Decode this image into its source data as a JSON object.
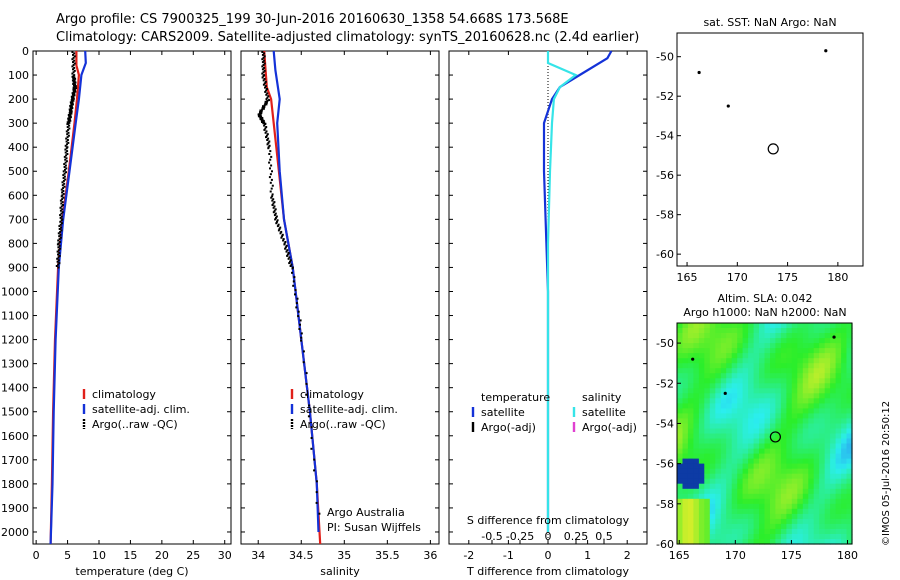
{
  "header": {
    "line1": "Argo profile: CS 7900325_199 30-Jun-2016 20160630_1358 54.668S 173.568E",
    "line2": "Climatology: CARS2009. Satellite-adjusted climatology: synTS_20160628.nc (2.4d earlier)"
  },
  "colors": {
    "clim": "#e0201a",
    "sat": "#1432d8",
    "argo": "#000000",
    "sal_sat": "#36e4e8",
    "sal_argo": "#e040d0"
  },
  "chart_data": [
    {
      "id": "temperature",
      "type": "line",
      "xlabel": "temperature (deg C)",
      "ylabel": "",
      "xlim": [
        -0.5,
        31
      ],
      "ylim": [
        2050,
        0
      ],
      "xticks": [
        0,
        5,
        10,
        15,
        20,
        25,
        30
      ],
      "xtick_labels": [
        "0",
        "5",
        "10",
        "15",
        "20",
        "25",
        "30"
      ],
      "yticks": [
        0,
        100,
        200,
        300,
        400,
        500,
        600,
        700,
        800,
        900,
        1000,
        1100,
        1200,
        1300,
        1400,
        1500,
        1600,
        1700,
        1800,
        1900,
        2000
      ],
      "ytick_labels": [
        "0",
        "100",
        "200",
        "300",
        "400",
        "500",
        "600",
        "700",
        "800",
        "900",
        "1000",
        "1100",
        "1200",
        "1300",
        "1400",
        "1500",
        "1600",
        "1700",
        "1800",
        "1900",
        "2000"
      ],
      "legend": [
        "climatology",
        "satellite-adj. clim.",
        "Argo(..raw -QC)"
      ],
      "series": [
        {
          "name": "climatology",
          "color_key": "clim",
          "style": "line",
          "points": [
            [
              6.4,
              0
            ],
            [
              6.4,
              60
            ],
            [
              6.8,
              100
            ],
            [
              6.5,
              200
            ],
            [
              6.1,
              300
            ],
            [
              5.2,
              500
            ],
            [
              4.2,
              700
            ],
            [
              3.5,
              900
            ],
            [
              3.0,
              1200
            ],
            [
              2.7,
              1500
            ],
            [
              2.5,
              1800
            ],
            [
              2.3,
              2050
            ]
          ]
        },
        {
          "name": "satellite-adj. clim.",
          "color_key": "sat",
          "style": "line",
          "points": [
            [
              7.8,
              0
            ],
            [
              7.9,
              50
            ],
            [
              7.2,
              100
            ],
            [
              6.8,
              200
            ],
            [
              6.3,
              300
            ],
            [
              5.3,
              500
            ],
            [
              4.3,
              700
            ],
            [
              3.6,
              900
            ],
            [
              3.1,
              1200
            ],
            [
              2.8,
              1500
            ],
            [
              2.6,
              1800
            ],
            [
              2.3,
              2050
            ]
          ]
        },
        {
          "name": "Argo(..raw -QC)",
          "color_key": "argo",
          "style": "dots",
          "points": [
            [
              5.8,
              0
            ],
            [
              5.8,
              100
            ],
            [
              6.0,
              150
            ],
            [
              5.6,
              200
            ],
            [
              5.3,
              250
            ],
            [
              5.0,
              300
            ],
            [
              4.7,
              400
            ],
            [
              4.4,
              500
            ],
            [
              4.0,
              600
            ],
            [
              3.8,
              700
            ],
            [
              3.5,
              800
            ],
            [
              3.3,
              900
            ]
          ]
        }
      ]
    },
    {
      "id": "salinity",
      "type": "line",
      "xlabel": "salinity",
      "ylabel": "",
      "xlim": [
        33.8,
        36.1
      ],
      "ylim": [
        2050,
        0
      ],
      "xticks": [
        34,
        34.5,
        35,
        35.5,
        36
      ],
      "xtick_labels": [
        "34",
        "34.5",
        "35",
        "35.5",
        "36"
      ],
      "legend": [
        "climatology",
        "satellite-adj. clim.",
        "Argo(..raw -QC)"
      ],
      "note1": "Argo Australia",
      "note2": "PI: Susan Wijffels",
      "series": [
        {
          "name": "climatology",
          "color_key": "clim",
          "style": "line",
          "points": [
            [
              34.07,
              0
            ],
            [
              34.1,
              150
            ],
            [
              34.15,
              200
            ],
            [
              34.18,
              300
            ],
            [
              34.24,
              500
            ],
            [
              34.3,
              700
            ],
            [
              34.4,
              900
            ],
            [
              34.5,
              1200
            ],
            [
              34.6,
              1500
            ],
            [
              34.68,
              1800
            ],
            [
              34.72,
              2050
            ]
          ]
        },
        {
          "name": "satellite-adj. clim.",
          "color_key": "sat",
          "style": "line",
          "points": [
            [
              34.18,
              0
            ],
            [
              34.2,
              80
            ],
            [
              34.25,
              200
            ],
            [
              34.22,
              300
            ],
            [
              34.25,
              500
            ],
            [
              34.3,
              700
            ],
            [
              34.4,
              900
            ],
            [
              34.5,
              1200
            ],
            [
              34.6,
              1500
            ],
            [
              34.68,
              1800
            ],
            [
              34.7,
              2000
            ]
          ]
        },
        {
          "name": "Argo(..raw -QC)",
          "color_key": "argo",
          "style": "dots",
          "points": [
            [
              34.05,
              0
            ],
            [
              34.05,
              100
            ],
            [
              34.1,
              200
            ],
            [
              34.0,
              260
            ],
            [
              34.06,
              300
            ],
            [
              34.12,
              400
            ],
            [
              34.15,
              600
            ],
            [
              34.2,
              700
            ],
            [
              34.3,
              800
            ],
            [
              34.38,
              900
            ],
            [
              34.5,
              1200
            ],
            [
              34.7,
              1950
            ]
          ]
        }
      ]
    },
    {
      "id": "difference",
      "type": "line",
      "xlabel": "T difference from climatology",
      "xlabel_top": "S difference from climatology",
      "xlim": [
        -2.5,
        2.5
      ],
      "ylim": [
        2050,
        0
      ],
      "xticks": [
        -2,
        -1,
        0,
        1,
        2
      ],
      "xtick_labels": [
        "-2",
        "-1",
        "0",
        "1",
        "2"
      ],
      "sticks": [
        -0.5,
        -0.25,
        0,
        0.25,
        0.5
      ],
      "stick_labels": [
        "-0.5",
        "-0.25",
        "0",
        "0.25",
        "0.5"
      ],
      "legend_t_head": "temperature",
      "legend_s_head": "salinity",
      "legend_t": [
        "satellite",
        "Argo(-adj)"
      ],
      "legend_s": [
        "satellite",
        "Argo(-adj)"
      ],
      "series": [
        {
          "name": "T satellite",
          "color_key": "sat",
          "style": "line",
          "points": [
            [
              1.6,
              0
            ],
            [
              1.5,
              30
            ],
            [
              0.8,
              100
            ],
            [
              0.3,
              150
            ],
            [
              0.1,
              200
            ],
            [
              -0.1,
              300
            ],
            [
              -0.1,
              500
            ],
            [
              0,
              1000
            ],
            [
              0,
              2000
            ]
          ]
        },
        {
          "name": "S satellite",
          "color_key": "sal_sat",
          "style": "line",
          "points": [
            [
              0,
              0
            ],
            [
              0,
              50
            ],
            [
              0.7,
              100
            ],
            [
              0.3,
              150
            ],
            [
              0.15,
              200
            ],
            [
              0.1,
              300
            ],
            [
              0.05,
              500
            ],
            [
              0,
              800
            ],
            [
              0,
              2000
            ]
          ]
        }
      ]
    },
    {
      "id": "sst-map",
      "type": "scatter",
      "title": "sat. SST: NaN Argo: NaN",
      "xlim": [
        164,
        182.5
      ],
      "ylim": [
        -60.6,
        -48.8
      ],
      "xticks": [
        165,
        170,
        175,
        180
      ],
      "xtick_labels": [
        "165",
        "170",
        "175",
        "180"
      ],
      "yticks": [
        -50,
        -52,
        -54,
        -56,
        -58,
        -60
      ],
      "ytick_labels": [
        "-50",
        "-52",
        "-54",
        "-56",
        "-58",
        "-60"
      ],
      "points": [
        [
          166.2,
          -50.8
        ],
        [
          169.1,
          -52.5
        ],
        [
          178.8,
          -49.7
        ]
      ],
      "profile": [
        173.57,
        -54.67
      ]
    },
    {
      "id": "sla-map",
      "type": "heatmap",
      "title1": "Altim. SLA: 0.042",
      "title2": "Argo h1000: NaN h2000: NaN",
      "xlim": [
        164.8,
        180.4
      ],
      "ylim": [
        -60,
        -49
      ],
      "xticks": [
        165,
        170,
        175,
        180
      ],
      "xtick_labels": [
        "165",
        "170",
        "175",
        "180"
      ],
      "yticks": [
        -50,
        -52,
        -54,
        -56,
        -58,
        -60
      ],
      "ytick_labels": [
        "-50",
        "-52",
        "-54",
        "-56",
        "-58",
        "-60"
      ],
      "points": [
        [
          166.2,
          -50.8
        ],
        [
          169.1,
          -52.5
        ],
        [
          178.8,
          -49.7
        ]
      ],
      "profile": [
        173.57,
        -54.67
      ]
    }
  ],
  "stamp": "©IMOS 05-Jul-2016 20:50:12"
}
